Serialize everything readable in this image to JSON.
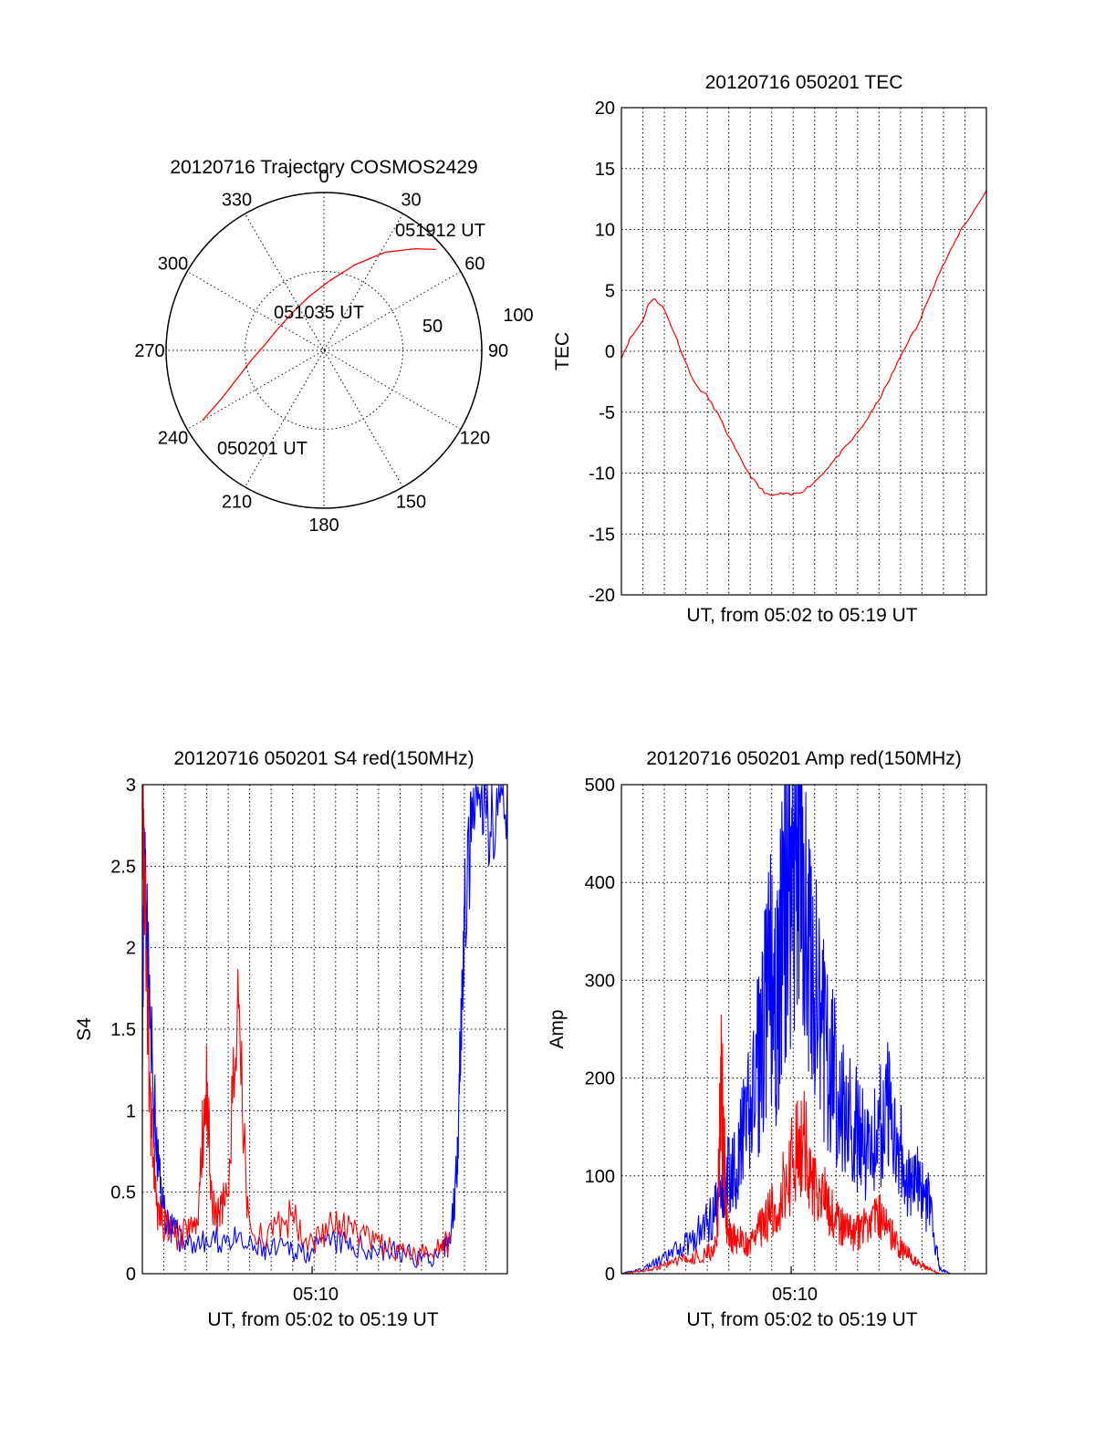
{
  "colors": {
    "red": "#ff0000",
    "blue": "#0000ff",
    "axis": "#000000",
    "background": "#ffffff"
  },
  "chart_data": [
    {
      "type": "polar",
      "title": "20120716 Trajectory COSMOS2429",
      "angle_labels": [
        "0",
        "30",
        "60",
        "90",
        "120",
        "150",
        "180",
        "210",
        "240",
        "270",
        "300",
        "330"
      ],
      "radial_labels": [
        "50",
        "100"
      ],
      "annotations": {
        "start": "050201 UT",
        "mid": "051035 UT",
        "end": "051912 UT"
      },
      "trajectory": {
        "color": "#ff0000",
        "points_azimuth_elevation": [
          [
            240,
            10
          ],
          [
            245,
            26
          ],
          [
            252,
            38
          ],
          [
            262,
            48
          ],
          [
            275,
            56
          ],
          [
            295,
            61
          ],
          [
            320,
            62
          ],
          [
            345,
            58
          ],
          [
            5,
            50
          ],
          [
            20,
            38
          ],
          [
            32,
            24
          ],
          [
            42,
            12
          ],
          [
            48,
            4
          ]
        ]
      }
    },
    {
      "type": "line",
      "title": "20120716 050201 TEC",
      "xlabel": "UT, from 05:02 to 05:19 UT",
      "ylabel": "TEC",
      "xlim_minutes": [
        0,
        17.2
      ],
      "ylim": [
        -20,
        20
      ],
      "yticks": [
        "20",
        "15",
        "10",
        "5",
        "0",
        "-5",
        "-10",
        "-15",
        "-20"
      ],
      "grid": true,
      "series": [
        {
          "color": "#ff0000",
          "x": [
            0,
            0.4,
            1.0,
            1.3,
            1.6,
            2.0,
            2.5,
            3.0,
            3.5,
            4.0,
            4.5,
            5.0,
            5.5,
            6.0,
            6.5,
            7.0,
            7.5,
            8.0,
            8.5,
            9.0,
            9.5,
            10.0,
            10.5,
            11.0,
            11.5,
            12.0,
            12.5,
            13.0,
            13.5,
            14.0,
            14.5,
            15.0,
            15.5,
            16.0,
            16.5,
            17.2
          ],
          "y": [
            -0.5,
            1.0,
            2.5,
            4.0,
            4.3,
            3.5,
            1.5,
            -0.8,
            -2.8,
            -3.6,
            -5.0,
            -6.8,
            -8.5,
            -10.0,
            -11.2,
            -11.9,
            -11.7,
            -11.8,
            -11.5,
            -10.9,
            -10.0,
            -9.0,
            -8.0,
            -7.0,
            -5.8,
            -4.4,
            -2.8,
            -1.0,
            0.8,
            2.2,
            4.5,
            6.5,
            8.2,
            10.0,
            11.2,
            13.2
          ]
        }
      ]
    },
    {
      "type": "line",
      "title": "20120716 050201 S4 red(150MHz)",
      "xlabel": "UT, from 05:02 to 05:19 UT",
      "ylabel": "S4",
      "xlim_minutes": [
        0,
        17.2
      ],
      "ylim": [
        0,
        3
      ],
      "yticks": [
        "3",
        "2.5",
        "2",
        "1.5",
        "1",
        "0.5",
        "0"
      ],
      "xtick_label": "05:10",
      "xtick_minute": 8,
      "grid": true,
      "series": [
        {
          "color": "#0000ff",
          "x": [
            0,
            0.1,
            0.2,
            0.4,
            0.7,
            1.0,
            1.5,
            2.0,
            3.0,
            4.0,
            5.0,
            6.0,
            7.0,
            8.0,
            9.0,
            10.0,
            11.0,
            12.0,
            13.0,
            14.0,
            14.5,
            14.8,
            15.0,
            15.2,
            15.5,
            16.0,
            16.5,
            17.2
          ],
          "y": [
            1.6,
            2.6,
            2.2,
            1.4,
            0.7,
            0.4,
            0.25,
            0.2,
            0.18,
            0.22,
            0.16,
            0.14,
            0.15,
            0.14,
            0.2,
            0.16,
            0.15,
            0.13,
            0.1,
            0.1,
            0.2,
            0.6,
            1.5,
            2.2,
            2.7,
            2.9,
            2.8,
            3.0
          ]
        },
        {
          "color": "#ff0000",
          "x": [
            0,
            0.1,
            0.2,
            0.4,
            0.7,
            1.0,
            1.5,
            2.0,
            2.6,
            3.0,
            3.3,
            3.6,
            4.0,
            4.5,
            5.0,
            6.0,
            7.0,
            8.0,
            9.0,
            10.0,
            11.0,
            12.0,
            13.0,
            14.0,
            14.5
          ],
          "y": [
            3.0,
            2.4,
            1.8,
            0.9,
            0.4,
            0.3,
            0.22,
            0.25,
            0.3,
            1.25,
            0.4,
            0.35,
            0.5,
            1.58,
            0.3,
            0.22,
            0.35,
            0.2,
            0.3,
            0.25,
            0.18,
            0.14,
            0.1,
            0.2,
            0.2
          ]
        }
      ]
    },
    {
      "type": "line",
      "title": "20120716 050201 Amp red(150MHz)",
      "xlabel": "UT, from 05:02 to 05:19 UT",
      "ylabel": "Amp",
      "xlim_minutes": [
        0,
        17.2
      ],
      "ylim": [
        0,
        500
      ],
      "yticks": [
        "500",
        "400",
        "300",
        "200",
        "100",
        "0"
      ],
      "xtick_label": "05:10",
      "xtick_minute": 8,
      "grid": true,
      "series": [
        {
          "color": "#0000ff",
          "x": [
            0,
            1.0,
            2.0,
            3.0,
            4.0,
            4.5,
            5.0,
            5.5,
            6.0,
            6.5,
            7.0,
            7.3,
            7.6,
            8.0,
            8.3,
            8.6,
            9.0,
            9.5,
            10.0,
            10.5,
            11.0,
            11.5,
            12.0,
            12.5,
            13.0,
            13.5,
            14.0,
            14.5,
            15.0,
            15.5,
            16.0,
            17.2
          ],
          "y": [
            0,
            5,
            15,
            30,
            50,
            70,
            100,
            120,
            160,
            220,
            300,
            260,
            350,
            420,
            450,
            380,
            300,
            240,
            200,
            170,
            150,
            130,
            140,
            170,
            150,
            90,
            90,
            70,
            5,
            0,
            0,
            0
          ]
        },
        {
          "color": "#ff0000",
          "x": [
            0,
            1.0,
            2.0,
            3.0,
            4.0,
            4.5,
            4.7,
            5.0,
            5.5,
            6.0,
            6.5,
            7.0,
            7.5,
            8.0,
            8.5,
            9.0,
            9.5,
            10.0,
            10.5,
            11.0,
            11.5,
            12.0,
            12.5,
            13.0,
            13.5,
            14.0,
            14.5,
            15.0,
            17.2
          ],
          "y": [
            0,
            3,
            8,
            15,
            20,
            30,
            200,
            40,
            35,
            30,
            45,
            60,
            80,
            110,
            140,
            100,
            80,
            60,
            45,
            40,
            50,
            60,
            50,
            30,
            20,
            10,
            5,
            0,
            0
          ]
        }
      ]
    }
  ]
}
